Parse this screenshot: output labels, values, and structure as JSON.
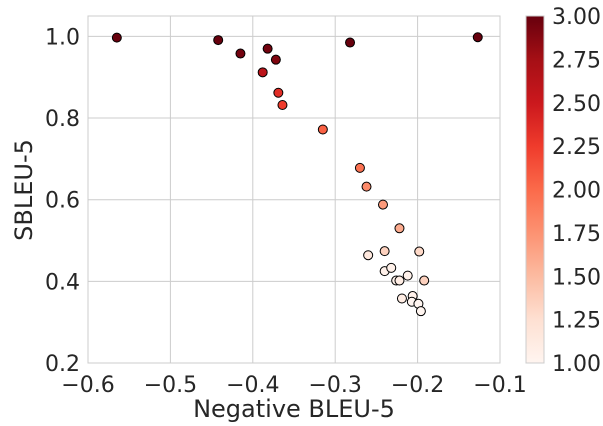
{
  "chart_data": {
    "type": "scatter",
    "title": "",
    "xlabel": "Negative BLEU-5",
    "ylabel": "SBLEU-5",
    "xlim": [
      -0.6,
      -0.1
    ],
    "ylim": [
      0.2,
      1.05
    ],
    "xticks": [
      -0.6,
      -0.5,
      -0.4,
      -0.3,
      -0.2,
      -0.1
    ],
    "xtick_labels": [
      "−0.6",
      "−0.5",
      "−0.4",
      "−0.3",
      "−0.2",
      "−0.1"
    ],
    "yticks": [
      0.2,
      0.4,
      0.6,
      0.8,
      1.0
    ],
    "ytick_labels": [
      "0.2",
      "0.4",
      "0.6",
      "0.8",
      "1.0"
    ],
    "grid": true,
    "colorbar": {
      "cmap": "Reds",
      "range": [
        1.0,
        3.0
      ],
      "ticks": [
        1.0,
        1.25,
        1.5,
        1.75,
        2.0,
        2.25,
        2.5,
        2.75,
        3.0
      ],
      "tick_labels": [
        "1.00",
        "1.25",
        "1.50",
        "1.75",
        "2.00",
        "2.25",
        "2.50",
        "2.75",
        "3.00"
      ]
    },
    "points": [
      {
        "x": -0.565,
        "y": 0.997,
        "c": 3.0
      },
      {
        "x": -0.442,
        "y": 0.991,
        "c": 3.0
      },
      {
        "x": -0.415,
        "y": 0.958,
        "c": 2.95
      },
      {
        "x": -0.382,
        "y": 0.97,
        "c": 2.95
      },
      {
        "x": -0.372,
        "y": 0.943,
        "c": 2.9
      },
      {
        "x": -0.282,
        "y": 0.985,
        "c": 3.0
      },
      {
        "x": -0.127,
        "y": 0.998,
        "c": 3.0
      },
      {
        "x": -0.388,
        "y": 0.912,
        "c": 2.6
      },
      {
        "x": -0.369,
        "y": 0.862,
        "c": 2.35
      },
      {
        "x": -0.364,
        "y": 0.832,
        "c": 2.25
      },
      {
        "x": -0.315,
        "y": 0.772,
        "c": 2.05
      },
      {
        "x": -0.27,
        "y": 0.678,
        "c": 1.95
      },
      {
        "x": -0.262,
        "y": 0.632,
        "c": 1.8
      },
      {
        "x": -0.242,
        "y": 0.588,
        "c": 1.7
      },
      {
        "x": -0.222,
        "y": 0.53,
        "c": 1.6
      },
      {
        "x": -0.24,
        "y": 0.474,
        "c": 1.35
      },
      {
        "x": -0.26,
        "y": 0.464,
        "c": 1.15
      },
      {
        "x": -0.198,
        "y": 0.473,
        "c": 1.3
      },
      {
        "x": -0.192,
        "y": 0.402,
        "c": 1.35
      },
      {
        "x": -0.24,
        "y": 0.425,
        "c": 1.05
      },
      {
        "x": -0.232,
        "y": 0.433,
        "c": 1.05
      },
      {
        "x": -0.226,
        "y": 0.402,
        "c": 1.05
      },
      {
        "x": -0.222,
        "y": 0.402,
        "c": 1.1
      },
      {
        "x": -0.212,
        "y": 0.414,
        "c": 1.05
      },
      {
        "x": -0.206,
        "y": 0.364,
        "c": 1.05
      },
      {
        "x": -0.219,
        "y": 0.358,
        "c": 1.1
      },
      {
        "x": -0.207,
        "y": 0.35,
        "c": 1.0
      },
      {
        "x": -0.199,
        "y": 0.345,
        "c": 1.0
      },
      {
        "x": -0.196,
        "y": 0.327,
        "c": 1.0
      }
    ]
  }
}
